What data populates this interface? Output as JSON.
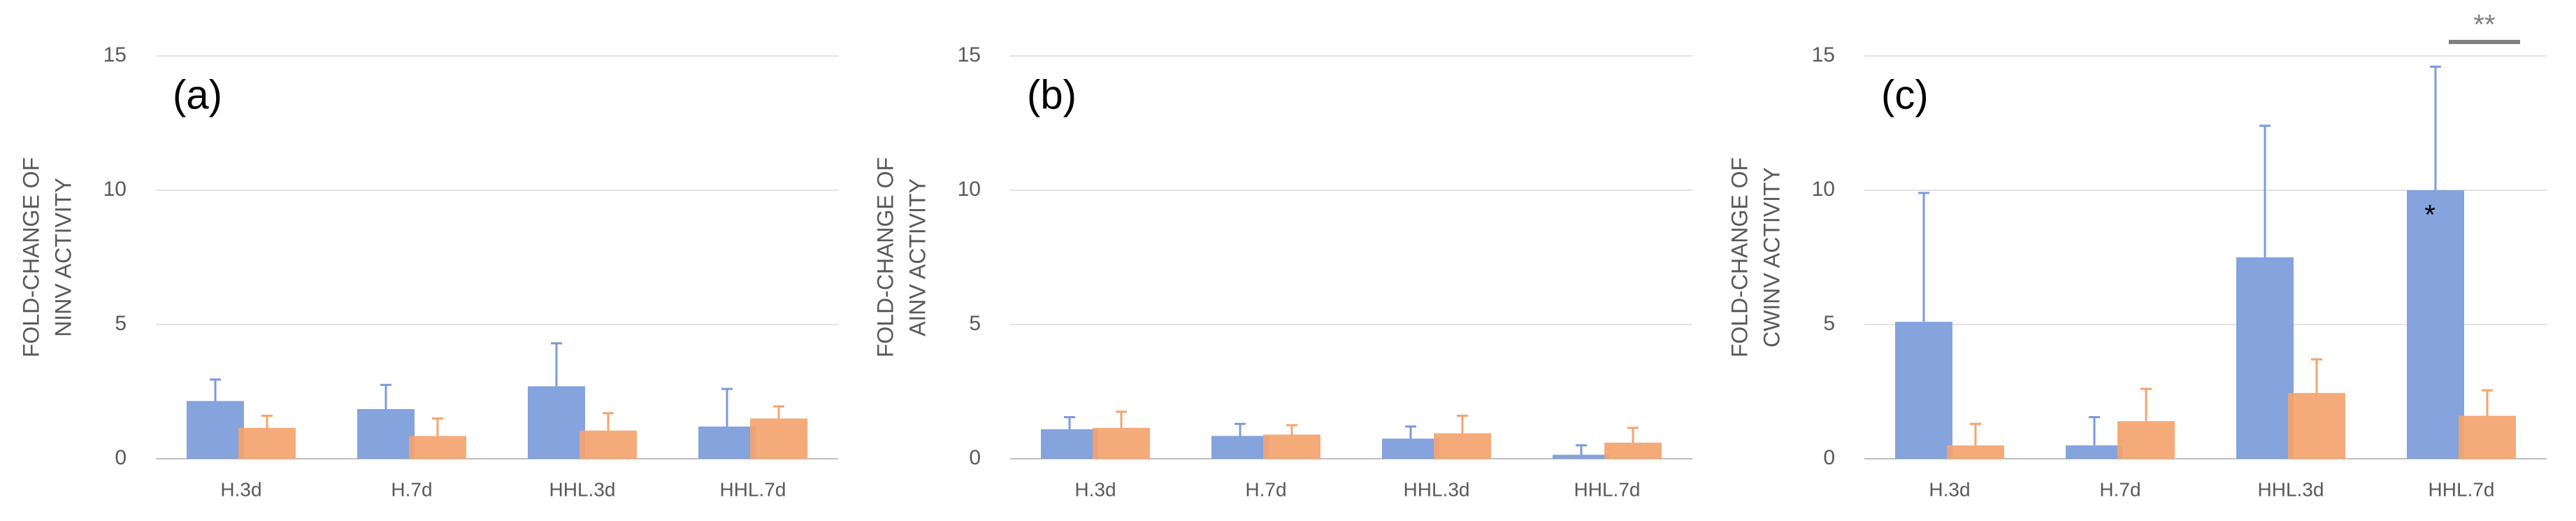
{
  "chart_data": [
    {
      "type": "bar",
      "panel_label": "(a)",
      "ylabel": [
        "FOLD-CHANGE OF",
        "NINV ACTIVITY"
      ],
      "categories": [
        "H.3d",
        "H.7d",
        "HHL.3d",
        "HHL.7d"
      ],
      "series": [
        {
          "color": "#7b9bd9",
          "values": [
            2.15,
            1.85,
            2.7,
            1.2
          ],
          "errors": [
            0.8,
            0.9,
            1.6,
            1.4
          ]
        },
        {
          "color": "#f4a46e",
          "values": [
            1.15,
            0.85,
            1.05,
            1.5
          ],
          "errors": [
            0.45,
            0.65,
            0.65,
            0.45
          ]
        }
      ],
      "ylim": [
        0,
        15
      ],
      "yticks": [
        0,
        5,
        10,
        15
      ],
      "grid": true
    },
    {
      "type": "bar",
      "panel_label": "(b)",
      "ylabel": [
        "FOLD-CHANGE OF",
        "AINV ACTIVITY"
      ],
      "categories": [
        "H.3d",
        "H.7d",
        "HHL.3d",
        "HHL.7d"
      ],
      "series": [
        {
          "color": "#7b9bd9",
          "values": [
            1.1,
            0.85,
            0.75,
            0.15
          ],
          "errors": [
            0.45,
            0.45,
            0.45,
            0.35
          ]
        },
        {
          "color": "#f4a46e",
          "values": [
            1.15,
            0.9,
            0.95,
            0.6
          ],
          "errors": [
            0.6,
            0.35,
            0.65,
            0.55
          ]
        }
      ],
      "ylim": [
        0,
        15
      ],
      "yticks": [
        0,
        5,
        10,
        15
      ],
      "grid": true
    },
    {
      "type": "bar",
      "panel_label": "(c)",
      "ylabel": [
        "FOLD-CHANGE OF",
        "CWINV ACTIVITY"
      ],
      "categories": [
        "H.3d",
        "H.7d",
        "HHL.3d",
        "HHL.7d"
      ],
      "series": [
        {
          "color": "#7b9bd9",
          "values": [
            5.1,
            0.5,
            7.5,
            10.0
          ],
          "errors": [
            4.8,
            1.05,
            4.9,
            4.6
          ]
        },
        {
          "color": "#f4a46e",
          "values": [
            0.5,
            1.4,
            2.45,
            1.6
          ],
          "errors": [
            0.8,
            1.2,
            1.25,
            0.95
          ]
        }
      ],
      "ylim": [
        0,
        15
      ],
      "yticks": [
        0,
        5,
        10,
        15
      ],
      "grid": true,
      "annotations": [
        "*",
        "**"
      ]
    }
  ]
}
